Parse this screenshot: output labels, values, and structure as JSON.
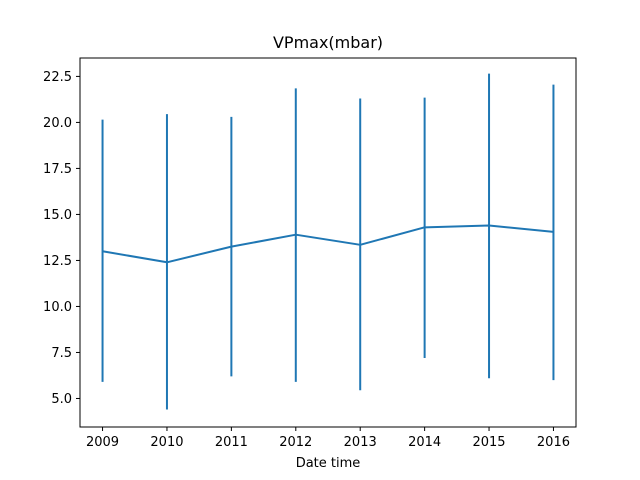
{
  "chart_data": {
    "type": "line",
    "title": "VPmax(mbar)",
    "xlabel": "Date time",
    "ylabel": "",
    "x": [
      2009,
      2010,
      2011,
      2012,
      2013,
      2014,
      2015,
      2016
    ],
    "x_tick_labels": [
      "2009",
      "2010",
      "2011",
      "2012",
      "2013",
      "2014",
      "2015",
      "2016"
    ],
    "xlim": [
      2008.65,
      2016.35
    ],
    "ylim": [
      3.45,
      23.5
    ],
    "y_ticks": [
      5.0,
      7.5,
      10.0,
      12.5,
      15.0,
      17.5,
      20.0,
      22.5
    ],
    "y_tick_labels": [
      "5.0",
      "7.5",
      "10.0",
      "12.5",
      "15.0",
      "17.5",
      "20.0",
      "22.5"
    ],
    "series": [
      {
        "values": [
          13.0,
          12.4,
          13.25,
          13.9,
          13.35,
          14.3,
          14.4,
          14.05
        ],
        "error_low": [
          5.9,
          4.4,
          6.2,
          5.9,
          5.45,
          7.2,
          6.1,
          6.0
        ],
        "error_high": [
          20.15,
          20.45,
          20.3,
          21.85,
          21.3,
          21.35,
          22.65,
          22.05
        ],
        "color": "#1f77b4"
      }
    ],
    "grid": false,
    "legend": "none"
  }
}
